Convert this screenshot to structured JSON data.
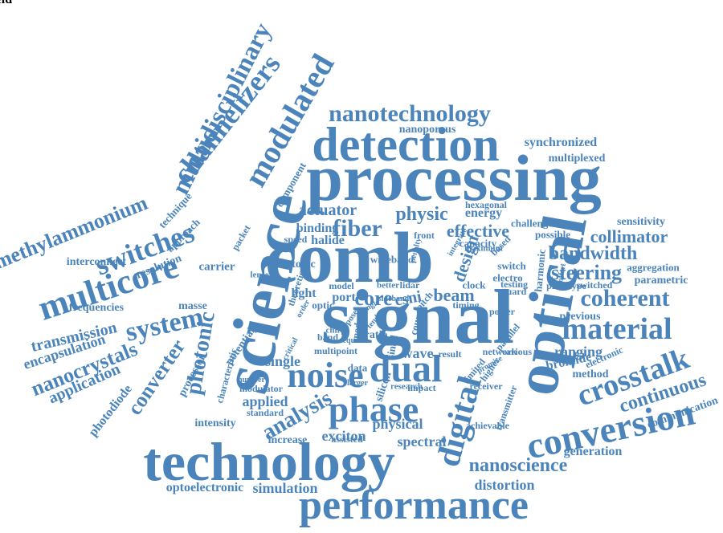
{
  "palette": {
    "word": "#4a84ba",
    "background": "#ffffff"
  },
  "words": [
    "signal",
    "comb",
    "processing",
    "science",
    "technology",
    "optical",
    "performance",
    "detection",
    "conversion",
    "noise",
    "dual",
    "phase",
    "digital",
    "modulated",
    "multicore",
    "material",
    "crosstalk",
    "nanotechnology",
    "switches",
    "coherent",
    "multidisciplinary",
    "channelizers",
    "methylammonium",
    "nanocrystals",
    "fiber",
    "system",
    "converter",
    "continuous",
    "analysis",
    "steering",
    "collimator",
    "bandwidth",
    "physic",
    "nanoscience",
    "distortion",
    "generation",
    "effective",
    "core",
    "beam",
    "photonic",
    "application",
    "transmission",
    "encapsulation",
    "photodiode",
    "simulation",
    "optoelectronic",
    "actuator",
    "binding",
    "halide",
    "ranging",
    "exciton",
    "physical",
    "spectral",
    "synchronized",
    "multiplexed",
    "sensitivity",
    "aggregation",
    "parametric",
    "single",
    "applied",
    "intensity",
    "increase",
    "resolution",
    "interconnect",
    "frequencies",
    "carrier",
    "masse",
    "topic",
    "design",
    "energy",
    "hexagonal",
    "capacity",
    "wave",
    "csni",
    "port",
    "light",
    "optic",
    "model",
    "lidar",
    "clock",
    "switch",
    "electro",
    "switched",
    "prototype",
    "previous",
    "method",
    "bromide",
    "electronic",
    "achievable",
    "receiver",
    "network",
    "transmitter",
    "communication",
    "impact",
    "research",
    "silicon",
    "assisted",
    "modulator",
    "standard",
    "processor",
    "characteristic",
    "potential",
    "multipoint",
    "band",
    "ratio",
    "data",
    "sinad",
    "count",
    "pitch",
    "limited",
    "result",
    "higher",
    "timing",
    "various",
    "parallel",
    "guard",
    "power",
    "testing",
    "based",
    "maximum",
    "possible",
    "challenge",
    "harmonic",
    "wideband",
    "better",
    "front",
    "speed",
    "packet",
    "approach",
    "technique",
    "component",
    "nanoporous",
    "theoretical",
    "lense",
    "modern",
    "chirp",
    "order",
    "point",
    "critical",
    "expose",
    "offset",
    "sideband",
    "number",
    "penalty",
    "angle",
    "tender",
    "require",
    "larger",
    "promise",
    "integrate",
    "field"
  ]
}
